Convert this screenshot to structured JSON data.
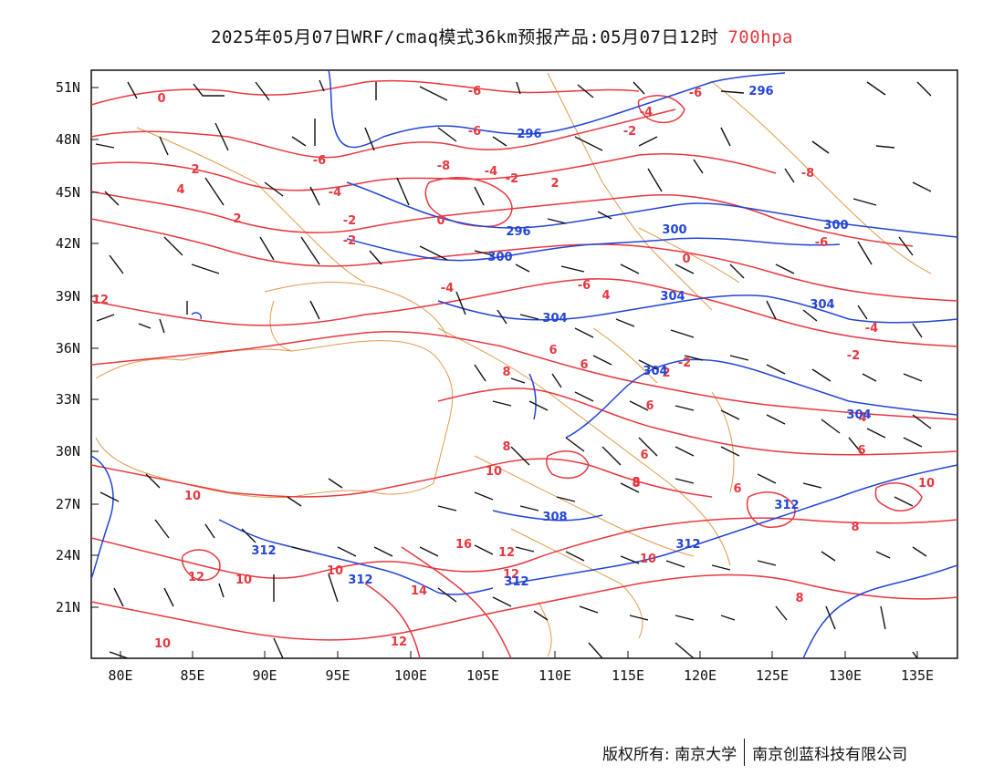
{
  "title": {
    "main": "2025年05月07日WRF/cmaq模式36km预报产品:05月07日12时",
    "level": "700hpa"
  },
  "colors": {
    "temperature": "#e8373f",
    "height": "#2244d8",
    "border": "#e09a4a",
    "wind": "#111111"
  },
  "axes": {
    "lat_labels": [
      "51N",
      "48N",
      "45N",
      "42N",
      "39N",
      "36N",
      "33N",
      "30N",
      "27N",
      "24N",
      "21N"
    ],
    "lon_labels": [
      "80E",
      "85E",
      "90E",
      "95E",
      "100E",
      "105E",
      "110E",
      "115E",
      "120E",
      "125E",
      "130E",
      "135E"
    ]
  },
  "temperature_labels": [
    "0",
    "-6",
    "-4",
    "-6",
    "-2",
    "-6",
    "-4",
    "-2",
    "-8",
    "2",
    "-6",
    "4",
    "-4",
    "-2",
    "2",
    "0",
    "-8",
    "-2",
    "-6",
    "12",
    "2",
    "-4",
    "0",
    "-6",
    "4",
    "6",
    "-4",
    "-2",
    "8",
    "6",
    "2",
    "-2",
    "8",
    "8",
    "6",
    "6",
    "10",
    "8",
    "10",
    "6",
    "12",
    "16",
    "10",
    "10",
    "14",
    "12",
    "10",
    "12",
    "10",
    "8",
    "10",
    "12",
    "6",
    "8",
    "4"
  ],
  "height_labels": [
    "296",
    "296",
    "296",
    "300",
    "300",
    "300",
    "304",
    "304",
    "304",
    "304",
    "304",
    "312",
    "308",
    "312",
    "312",
    "312",
    "312"
  ],
  "footer": {
    "copyright": "版权所有: 南京大学",
    "company": "南京创蓝科技有限公司"
  }
}
